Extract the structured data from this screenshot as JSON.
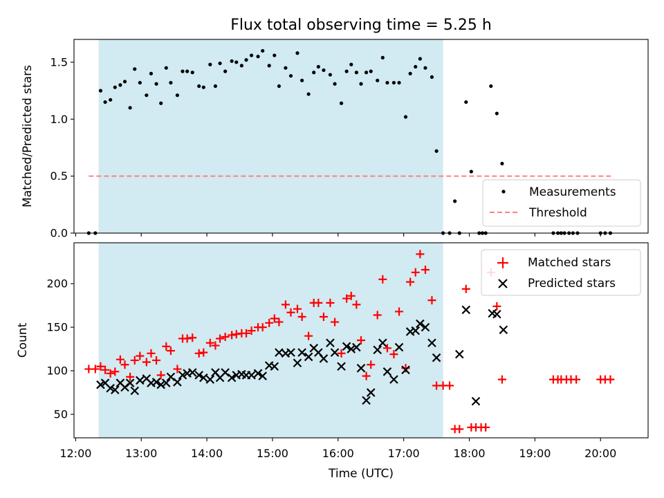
{
  "title": "Flux total observing time = 5.25 h",
  "colors": {
    "shade": "#add8e6",
    "measure": "#000000",
    "threshold": "#ff7f7f",
    "matched": "#ff0000",
    "predicted": "#000000"
  },
  "chart_data": [
    {
      "type": "scatter",
      "panel": "top",
      "ylabel": "Matched/Predicted stars",
      "xlim": [
        11.975,
        20.725
      ],
      "ylim": [
        0,
        1.7
      ],
      "yticks": [
        0,
        0.5,
        1.0,
        1.5
      ],
      "ytick_labels": [
        "0.0",
        "0.5",
        "1.0",
        "1.5"
      ],
      "observing_window": [
        12.35,
        17.6
      ],
      "threshold": {
        "value": 0.5,
        "x_range": [
          12.2,
          20.2
        ],
        "label": "Threshold"
      },
      "legend": {
        "position": "lower-right",
        "entries": [
          "Measurements",
          "Threshold"
        ]
      },
      "series": [
        {
          "name": "Measurements",
          "marker": "dot",
          "points": [
            [
              12.2,
              0
            ],
            [
              12.3,
              0
            ],
            [
              12.38,
              1.25
            ],
            [
              12.45,
              1.15
            ],
            [
              12.53,
              1.17
            ],
            [
              12.6,
              1.28
            ],
            [
              12.68,
              1.3
            ],
            [
              12.75,
              1.33
            ],
            [
              12.83,
              1.1
            ],
            [
              12.9,
              1.44
            ],
            [
              12.98,
              1.32
            ],
            [
              13.08,
              1.21
            ],
            [
              13.15,
              1.4
            ],
            [
              13.23,
              1.31
            ],
            [
              13.3,
              1.14
            ],
            [
              13.38,
              1.45
            ],
            [
              13.45,
              1.32
            ],
            [
              13.55,
              1.21
            ],
            [
              13.63,
              1.42
            ],
            [
              13.7,
              1.42
            ],
            [
              13.78,
              1.41
            ],
            [
              13.88,
              1.29
            ],
            [
              13.95,
              1.28
            ],
            [
              14.05,
              1.48
            ],
            [
              14.13,
              1.29
            ],
            [
              14.2,
              1.49
            ],
            [
              14.28,
              1.42
            ],
            [
              14.38,
              1.51
            ],
            [
              14.45,
              1.5
            ],
            [
              14.53,
              1.47
            ],
            [
              14.6,
              1.52
            ],
            [
              14.68,
              1.56
            ],
            [
              14.78,
              1.55
            ],
            [
              14.85,
              1.6
            ],
            [
              14.95,
              1.47
            ],
            [
              15.03,
              1.56
            ],
            [
              15.1,
              1.29
            ],
            [
              15.2,
              1.45
            ],
            [
              15.28,
              1.38
            ],
            [
              15.38,
              1.58
            ],
            [
              15.45,
              1.34
            ],
            [
              15.55,
              1.22
            ],
            [
              15.63,
              1.41
            ],
            [
              15.7,
              1.46
            ],
            [
              15.78,
              1.43
            ],
            [
              15.88,
              1.39
            ],
            [
              15.95,
              1.31
            ],
            [
              16.05,
              1.14
            ],
            [
              16.13,
              1.42
            ],
            [
              16.2,
              1.48
            ],
            [
              16.28,
              1.41
            ],
            [
              16.35,
              1.31
            ],
            [
              16.43,
              1.41
            ],
            [
              16.5,
              1.42
            ],
            [
              16.6,
              1.34
            ],
            [
              16.68,
              1.54
            ],
            [
              16.75,
              1.32
            ],
            [
              16.85,
              1.32
            ],
            [
              16.93,
              1.32
            ],
            [
              17.03,
              1.02
            ],
            [
              17.1,
              1.4
            ],
            [
              17.18,
              1.46
            ],
            [
              17.25,
              1.53
            ],
            [
              17.33,
              1.45
            ],
            [
              17.43,
              1.37
            ],
            [
              17.5,
              0.72
            ],
            [
              17.6,
              0
            ],
            [
              17.7,
              0
            ],
            [
              17.78,
              0.28
            ],
            [
              17.85,
              0
            ],
            [
              17.95,
              1.15
            ],
            [
              18.03,
              0.54
            ],
            [
              18.15,
              0
            ],
            [
              18.25,
              0
            ],
            [
              18.33,
              1.29
            ],
            [
              18.42,
              1.05
            ],
            [
              18.5,
              0.61
            ],
            [
              18.2,
              0
            ],
            [
              19.28,
              0
            ],
            [
              19.35,
              0
            ],
            [
              19.4,
              0
            ],
            [
              19.45,
              0
            ],
            [
              19.52,
              0
            ],
            [
              19.58,
              0
            ],
            [
              19.65,
              0
            ],
            [
              20.0,
              0
            ],
            [
              20.07,
              0
            ],
            [
              20.15,
              0
            ]
          ]
        }
      ]
    },
    {
      "type": "scatter",
      "panel": "bottom",
      "xlabel": "Time (UTC)",
      "ylabel": "Count",
      "xlim": [
        11.975,
        20.725
      ],
      "ylim": [
        23,
        247
      ],
      "yticks": [
        50,
        100,
        150,
        200
      ],
      "ytick_labels": [
        "50",
        "100",
        "150",
        "200"
      ],
      "xticks": [
        12,
        13,
        14,
        15,
        16,
        17,
        18,
        19,
        20
      ],
      "xtick_labels": [
        "12:00",
        "13:00",
        "14:00",
        "15:00",
        "16:00",
        "17:00",
        "18:00",
        "19:00",
        "20:00"
      ],
      "observing_window": [
        12.35,
        17.6
      ],
      "legend": {
        "position": "top-right",
        "entries": [
          "Matched stars",
          "Predicted stars"
        ]
      },
      "series": [
        {
          "name": "Matched stars",
          "marker": "plus",
          "points": [
            [
              12.2,
              102
            ],
            [
              12.3,
              102
            ],
            [
              12.38,
              105
            ],
            [
              12.45,
              101
            ],
            [
              12.53,
              97
            ],
            [
              12.6,
              99
            ],
            [
              12.68,
              113
            ],
            [
              12.75,
              107
            ],
            [
              12.83,
              93
            ],
            [
              12.9,
              112
            ],
            [
              12.98,
              117
            ],
            [
              13.08,
              110
            ],
            [
              13.15,
              120
            ],
            [
              13.23,
              112
            ],
            [
              13.3,
              95
            ],
            [
              13.38,
              128
            ],
            [
              13.45,
              123
            ],
            [
              13.55,
              102
            ],
            [
              13.63,
              137
            ],
            [
              13.7,
              137
            ],
            [
              13.78,
              138
            ],
            [
              13.88,
              120
            ],
            [
              13.95,
              121
            ],
            [
              14.05,
              132
            ],
            [
              14.13,
              129
            ],
            [
              14.2,
              137
            ],
            [
              14.28,
              139
            ],
            [
              14.38,
              141
            ],
            [
              14.45,
              142
            ],
            [
              14.53,
              143
            ],
            [
              14.6,
              143
            ],
            [
              14.68,
              146
            ],
            [
              14.78,
              150
            ],
            [
              14.85,
              150
            ],
            [
              14.95,
              155
            ],
            [
              15.03,
              160
            ],
            [
              15.1,
              156
            ],
            [
              15.2,
              176
            ],
            [
              15.28,
              167
            ],
            [
              15.38,
              171
            ],
            [
              15.45,
              162
            ],
            [
              15.55,
              140
            ],
            [
              15.63,
              178
            ],
            [
              15.7,
              178
            ],
            [
              15.78,
              162
            ],
            [
              15.88,
              178
            ],
            [
              15.95,
              156
            ],
            [
              16.05,
              120
            ],
            [
              16.13,
              183
            ],
            [
              16.2,
              186
            ],
            [
              16.28,
              176
            ],
            [
              16.35,
              135
            ],
            [
              16.43,
              94
            ],
            [
              16.5,
              107
            ],
            [
              16.6,
              164
            ],
            [
              16.68,
              205
            ],
            [
              16.75,
              126
            ],
            [
              16.85,
              119
            ],
            [
              16.93,
              168
            ],
            [
              17.03,
              103
            ],
            [
              17.1,
              202
            ],
            [
              17.18,
              213
            ],
            [
              17.25,
              234
            ],
            [
              17.33,
              216
            ],
            [
              17.43,
              181
            ],
            [
              17.5,
              83
            ],
            [
              17.6,
              83
            ],
            [
              17.7,
              83
            ],
            [
              17.78,
              33
            ],
            [
              17.85,
              33
            ],
            [
              17.95,
              194
            ],
            [
              18.03,
              35
            ],
            [
              18.1,
              35
            ],
            [
              18.18,
              35
            ],
            [
              18.25,
              35
            ],
            [
              18.33,
              213
            ],
            [
              18.42,
              174
            ],
            [
              18.5,
              90
            ],
            [
              19.28,
              90
            ],
            [
              19.35,
              90
            ],
            [
              19.4,
              90
            ],
            [
              19.48,
              90
            ],
            [
              19.55,
              90
            ],
            [
              19.63,
              90
            ],
            [
              20.0,
              90
            ],
            [
              20.07,
              90
            ],
            [
              20.15,
              90
            ]
          ]
        },
        {
          "name": "Predicted stars",
          "marker": "x",
          "points": [
            [
              12.38,
              84
            ],
            [
              12.45,
              86
            ],
            [
              12.53,
              80
            ],
            [
              12.6,
              78
            ],
            [
              12.68,
              86
            ],
            [
              12.75,
              81
            ],
            [
              12.83,
              86
            ],
            [
              12.9,
              77
            ],
            [
              12.98,
              89
            ],
            [
              13.08,
              91
            ],
            [
              13.15,
              86
            ],
            [
              13.23,
              87
            ],
            [
              13.3,
              84
            ],
            [
              13.38,
              86
            ],
            [
              13.45,
              93
            ],
            [
              13.55,
              87
            ],
            [
              13.63,
              95
            ],
            [
              13.7,
              97
            ],
            [
              13.78,
              98
            ],
            [
              13.88,
              95
            ],
            [
              13.95,
              92
            ],
            [
              14.05,
              90
            ],
            [
              14.13,
              98
            ],
            [
              14.2,
              92
            ],
            [
              14.28,
              98
            ],
            [
              14.38,
              92
            ],
            [
              14.45,
              95
            ],
            [
              14.53,
              96
            ],
            [
              14.6,
              95
            ],
            [
              14.68,
              95
            ],
            [
              14.78,
              97
            ],
            [
              14.85,
              94
            ],
            [
              14.95,
              106
            ],
            [
              15.03,
              105
            ],
            [
              15.1,
              121
            ],
            [
              15.2,
              120
            ],
            [
              15.28,
              121
            ],
            [
              15.38,
              109
            ],
            [
              15.45,
              121
            ],
            [
              15.55,
              116
            ],
            [
              15.63,
              126
            ],
            [
              15.7,
              121
            ],
            [
              15.78,
              114
            ],
            [
              15.88,
              132
            ],
            [
              15.95,
              121
            ],
            [
              16.05,
              105
            ],
            [
              16.13,
              128
            ],
            [
              16.2,
              125
            ],
            [
              16.28,
              127
            ],
            [
              16.35,
              103
            ],
            [
              16.43,
              66
            ],
            [
              16.5,
              75
            ],
            [
              16.6,
              124
            ],
            [
              16.68,
              132
            ],
            [
              16.75,
              99
            ],
            [
              16.85,
              90
            ],
            [
              16.93,
              127
            ],
            [
              17.03,
              101
            ],
            [
              17.1,
              145
            ],
            [
              17.18,
              146
            ],
            [
              17.25,
              154
            ],
            [
              17.33,
              150
            ],
            [
              17.43,
              132
            ],
            [
              17.5,
              115
            ],
            [
              17.85,
              119
            ],
            [
              17.95,
              170
            ],
            [
              18.1,
              65
            ],
            [
              18.35,
              166
            ],
            [
              18.42,
              165
            ],
            [
              18.52,
              147
            ]
          ]
        }
      ]
    }
  ]
}
